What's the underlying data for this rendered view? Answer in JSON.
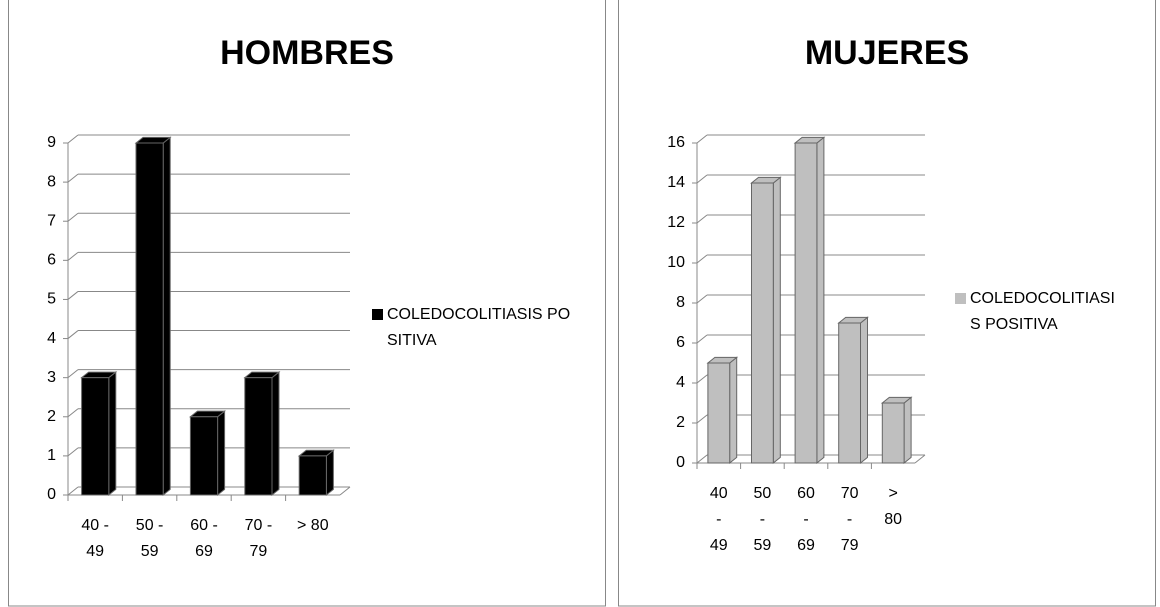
{
  "chart_data": [
    {
      "type": "bar",
      "title": "HOMBRES",
      "categories": [
        "40 - 49",
        "50 - 59",
        "60 - 69",
        "70 - 79",
        "> 80"
      ],
      "series": [
        {
          "name": "COLEDOCOLITIASIS POSITIVA",
          "color": "#000000",
          "values": [
            3,
            9,
            2,
            3,
            1
          ]
        }
      ],
      "ylim": [
        0,
        9
      ],
      "yticks": [
        0,
        1,
        2,
        3,
        4,
        5,
        6,
        7,
        8,
        9
      ],
      "grid": true,
      "legend": "right"
    },
    {
      "type": "bar",
      "title": "MUJERES",
      "categories": [
        "40 - 49",
        "50 - 59",
        "60 - 69",
        "70 - 79",
        "> 80"
      ],
      "series": [
        {
          "name": "COLEDOCOLITIASIS POSITIVA",
          "color": "#bfbfbf",
          "values": [
            5,
            14,
            16,
            7,
            3
          ]
        }
      ],
      "ylim": [
        0,
        16
      ],
      "yticks": [
        0,
        2,
        4,
        6,
        8,
        10,
        12,
        14,
        16
      ],
      "grid": true,
      "legend": "right"
    }
  ]
}
